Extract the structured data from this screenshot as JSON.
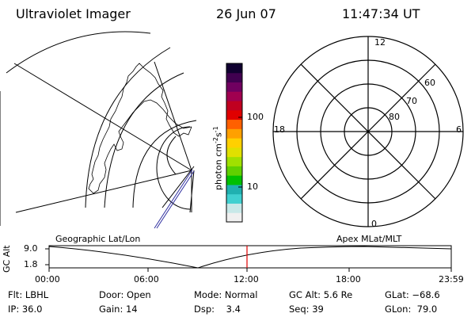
{
  "header": {
    "title": "Ultraviolet Imager",
    "date": "26 Jun 07",
    "time": "11:47:34 UT"
  },
  "colorbar": {
    "label": "photon cm",
    "label_exp1": "-2",
    "label_mid": "s",
    "label_exp2": "-1",
    "ticks": [
      "100",
      "10"
    ],
    "tick_values": [
      100,
      10
    ],
    "colors_bottom_to_top": [
      "#f0f0f0",
      "#c8e8e8",
      "#40d0d0",
      "#20b0b0",
      "#00c000",
      "#60d000",
      "#a0e000",
      "#e0e000",
      "#ffd000",
      "#ffa000",
      "#ff6000",
      "#e00000",
      "#c00020",
      "#a00050",
      "#700060",
      "#400050",
      "#100030"
    ]
  },
  "polar": {
    "mlt_labels": {
      "top": "12",
      "left": "18",
      "right": "6",
      "bottom": "0"
    },
    "lat_labels": [
      "60",
      "70",
      "80"
    ]
  },
  "panels": {
    "left_caption": "Geographic Lat/Lon",
    "right_caption": "Apex MLat/MLT"
  },
  "timeline": {
    "ylabel": "GC Alt",
    "yticks": [
      "9.0",
      "1.8"
    ],
    "xticks": [
      "00:00",
      "06:00",
      "12:00",
      "18:00",
      "23:59"
    ],
    "current_time_marker": "11:47"
  },
  "status": {
    "flt_label": "Flt:",
    "flt_value": "LBHL",
    "ip_label": "IP:",
    "ip_value": "36.0",
    "door_label": "Door:",
    "door_value": "Open",
    "gain_label": "Gain:",
    "gain_value": "14",
    "mode_label": "Mode:",
    "mode_value": "Normal",
    "dsp_label": "Dsp:",
    "dsp_value": "3.4",
    "gcalt_label": "GC Alt:",
    "gcalt_value": "5.6 Re",
    "seq_label": "Seq:",
    "seq_value": "39",
    "glat_label": "GLat:",
    "glat_value": "−68.6",
    "glon_label": "GLon:",
    "glon_value": "79.0"
  },
  "colors": {
    "marker": "#e00000",
    "orbit": "#3030a0"
  }
}
